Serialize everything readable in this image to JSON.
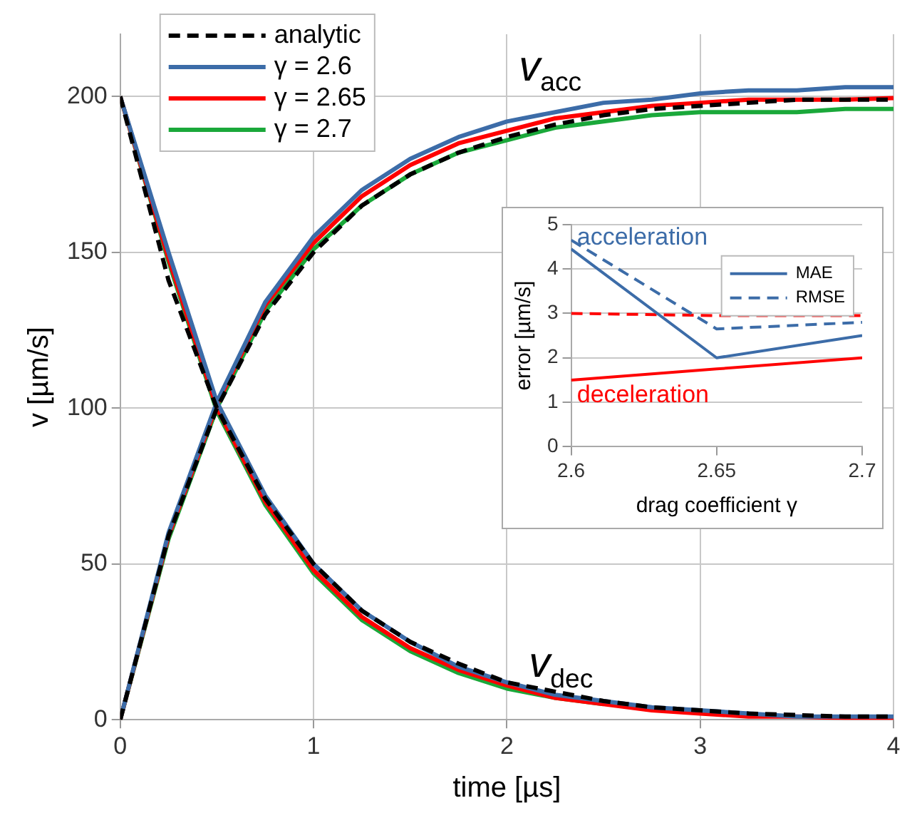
{
  "chart_data": [
    {
      "type": "line",
      "xlabel": "time [µs]",
      "ylabel": "v [µm/s]",
      "x": [
        0,
        0.25,
        0.5,
        0.75,
        1,
        1.25,
        1.5,
        1.75,
        2,
        2.25,
        2.5,
        2.75,
        3,
        3.25,
        3.5,
        3.75,
        4
      ],
      "xlim": [
        0,
        4
      ],
      "xticks": [
        0,
        1,
        2,
        3,
        4
      ],
      "ylim": [
        0,
        220
      ],
      "yticks": [
        0,
        50,
        100,
        150,
        200
      ],
      "grid": true,
      "legend": "top left",
      "marker": "none",
      "series": [
        {
          "name": "analytic",
          "color": "#000000",
          "line_style": "dashed",
          "values": [
            0,
            59,
            100,
            130,
            150,
            165,
            175,
            182,
            187,
            191,
            194,
            196,
            197,
            198,
            199,
            199,
            199
          ]
        },
        {
          "color": "#000000",
          "line_style": "dashed",
          "values": [
            200,
            141,
            100,
            71,
            50,
            35,
            25,
            18,
            12,
            9,
            6,
            4,
            3,
            2,
            1.5,
            1,
            1
          ]
        },
        {
          "name": "γ = 2.6",
          "color": "#3c6ca8",
          "values": [
            0,
            60,
            102,
            134,
            155,
            170,
            180,
            187,
            192,
            195,
            198,
            199,
            201,
            202,
            202,
            203,
            203
          ]
        },
        {
          "color": "#3c6ca8",
          "values": [
            200,
            150,
            102,
            72,
            50,
            35,
            25,
            17,
            12,
            8,
            6,
            4,
            3,
            2,
            1,
            1,
            1
          ]
        },
        {
          "name": "γ = 2.65",
          "color": "#ff0000",
          "values": [
            0,
            59,
            101,
            133,
            153,
            168,
            178,
            185,
            189,
            193,
            195,
            197,
            198,
            199,
            199,
            199,
            199.5
          ]
        },
        {
          "color": "#ff0000",
          "values": [
            200,
            148,
            100,
            70,
            48,
            33,
            23,
            16,
            11,
            7,
            5,
            3,
            2,
            1,
            1,
            0.5,
            0.5
          ]
        },
        {
          "name": "γ = 2.7",
          "color": "#1aa83a",
          "values": [
            0,
            58,
            100,
            131,
            151,
            165,
            175,
            182,
            186,
            190,
            192,
            194,
            195,
            195,
            195,
            196,
            196
          ]
        },
        {
          "color": "#1aa83a",
          "values": [
            200,
            147,
            99,
            69,
            47,
            32,
            22,
            15,
            10,
            7,
            5,
            null,
            null,
            null,
            null,
            null,
            null
          ]
        }
      ],
      "annotations": [
        "v$_{acc}$",
        "v$_{dec}$"
      ]
    },
    {
      "type": "line",
      "xlabel": "drag coefficient γ",
      "ylabel": "error [µm/s]",
      "x": [
        2.6,
        2.65,
        2.7
      ],
      "xlim": [
        2.6,
        2.7
      ],
      "xticks": [
        2.6,
        2.65,
        2.7
      ],
      "ylim": [
        0,
        5
      ],
      "yticks": [
        0,
        1,
        2,
        3,
        4,
        5
      ],
      "grid": "y",
      "legend": "top right",
      "marker": "none",
      "series": [
        {
          "name": "MAE",
          "color": "#3c6ca8",
          "values": [
            4.45,
            2.0,
            2.5
          ]
        },
        {
          "name": "RMSE",
          "color": "#3c6ca8",
          "line_style": "dashed",
          "values": [
            4.65,
            2.65,
            2.8
          ]
        },
        {
          "color": "#ff0000",
          "values": [
            1.5,
            1.75,
            2.0
          ]
        },
        {
          "color": "#ff0000",
          "line_style": "dashed",
          "values": [
            3.0,
            2.95,
            2.95
          ]
        }
      ],
      "annotations": [
        "acceleration",
        "deceleration"
      ]
    }
  ]
}
